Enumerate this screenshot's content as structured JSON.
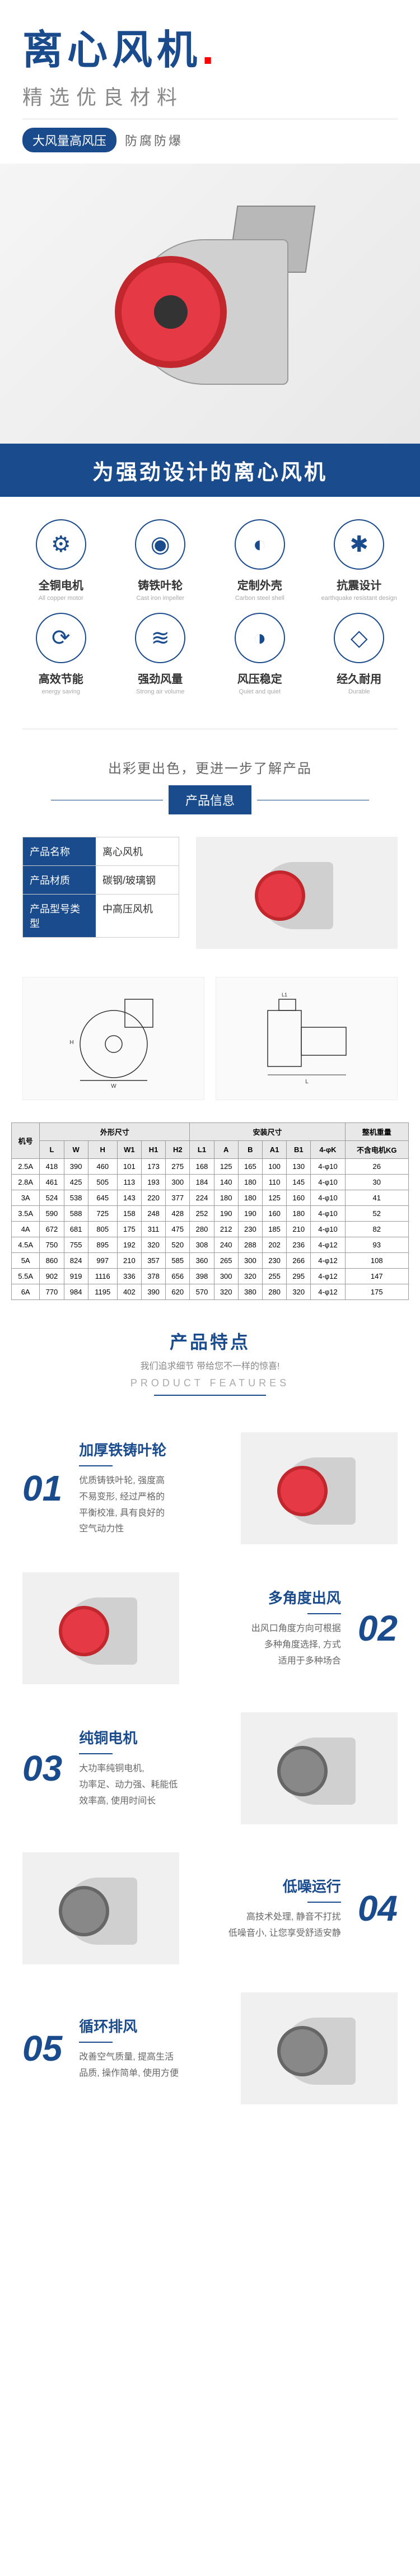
{
  "hero": {
    "title": "离心风机",
    "subtitle": "精选优良材料",
    "tag_dark": "大风量高风压",
    "tag_light": "防腐防爆"
  },
  "banner": "为强劲设计的离心风机",
  "features8": [
    {
      "icon": "⚙",
      "name": "全铜电机",
      "en": "All copper motor"
    },
    {
      "icon": "◉",
      "name": "铸铁叶轮",
      "en": "Cast iron impeller"
    },
    {
      "icon": "◐",
      "name": "定制外壳",
      "en": "Carbon steel shell"
    },
    {
      "icon": "✱",
      "name": "抗震设计",
      "en": "earthquake resistant design"
    },
    {
      "icon": "⟳",
      "name": "高效节能",
      "en": "energy saving"
    },
    {
      "icon": "≋",
      "name": "强劲风量",
      "en": "Strong air volume"
    },
    {
      "icon": "◑",
      "name": "风压稳定",
      "en": "Quiet and quiet"
    },
    {
      "icon": "◇",
      "name": "经久耐用",
      "en": "Durable"
    }
  ],
  "section_info": {
    "lead": "出彩更出色，更进一步了解产品",
    "tab": "产品信息"
  },
  "info_table": [
    {
      "label": "产品名称",
      "value": "离心风机"
    },
    {
      "label": "产品材质",
      "value": "碳钢/玻璃钢"
    },
    {
      "label": "产品型号类型",
      "value": "中高压风机"
    }
  ],
  "spec": {
    "header_groups": [
      "机号",
      "外形尺寸",
      "安装尺寸",
      "整机重量"
    ],
    "columns": [
      "机号",
      "L",
      "W",
      "H",
      "W1",
      "H1",
      "H2",
      "L1",
      "A",
      "B",
      "A1",
      "B1",
      "4-φK",
      "不含电机KG"
    ],
    "rows": [
      [
        "2.5A",
        "418",
        "390",
        "460",
        "101",
        "173",
        "275",
        "168",
        "125",
        "165",
        "100",
        "130",
        "4-φ10",
        "26"
      ],
      [
        "2.8A",
        "461",
        "425",
        "505",
        "113",
        "193",
        "300",
        "184",
        "140",
        "180",
        "110",
        "145",
        "4-φ10",
        "30"
      ],
      [
        "3A",
        "524",
        "538",
        "645",
        "143",
        "220",
        "377",
        "224",
        "180",
        "180",
        "125",
        "160",
        "4-φ10",
        "41"
      ],
      [
        "3.5A",
        "590",
        "588",
        "725",
        "158",
        "248",
        "428",
        "252",
        "190",
        "190",
        "160",
        "180",
        "4-φ10",
        "52"
      ],
      [
        "4A",
        "672",
        "681",
        "805",
        "175",
        "311",
        "475",
        "280",
        "212",
        "230",
        "185",
        "210",
        "4-φ10",
        "82"
      ],
      [
        "4.5A",
        "750",
        "755",
        "895",
        "192",
        "320",
        "520",
        "308",
        "240",
        "288",
        "202",
        "236",
        "4-φ12",
        "93"
      ],
      [
        "5A",
        "860",
        "824",
        "997",
        "210",
        "357",
        "585",
        "360",
        "265",
        "300",
        "230",
        "266",
        "4-φ12",
        "108"
      ],
      [
        "5.5A",
        "902",
        "919",
        "1116",
        "336",
        "378",
        "656",
        "398",
        "300",
        "320",
        "255",
        "295",
        "4-φ12",
        "147"
      ],
      [
        "6A",
        "770",
        "984",
        "1195",
        "402",
        "390",
        "620",
        "570",
        "320",
        "380",
        "280",
        "320",
        "4-φ12",
        "175"
      ]
    ]
  },
  "prod_features": {
    "title_cn": "产品特点",
    "subtitle": "我们追求细节  带给您不一样的惊喜!",
    "title_en": "PRODUCT FEATURES",
    "items": [
      {
        "num": "01",
        "title": "加厚铁铸叶轮",
        "desc": "优质铸铁叶轮, 强度高\n不易变形, 经过严格的\n平衡校准, 具有良好的\n空气动力性"
      },
      {
        "num": "02",
        "title": "多角度出风",
        "desc": "出风口角度方向可根据\n多种角度选择, 方式\n适用于多种场合"
      },
      {
        "num": "03",
        "title": "纯铜电机",
        "desc": "大功率纯铜电机,\n功率足、动力强、耗能低\n效率高, 使用时间长"
      },
      {
        "num": "04",
        "title": "低噪运行",
        "desc": "高技术处理, 静音不打扰\n低噪音小, 让您享受舒适安静"
      },
      {
        "num": "05",
        "title": "循环排风",
        "desc": "改善空气质量, 提高生活\n品质, 操作简单, 使用方便"
      }
    ]
  },
  "colors": {
    "primary": "#1a4b8c",
    "accent": "#e63946"
  }
}
